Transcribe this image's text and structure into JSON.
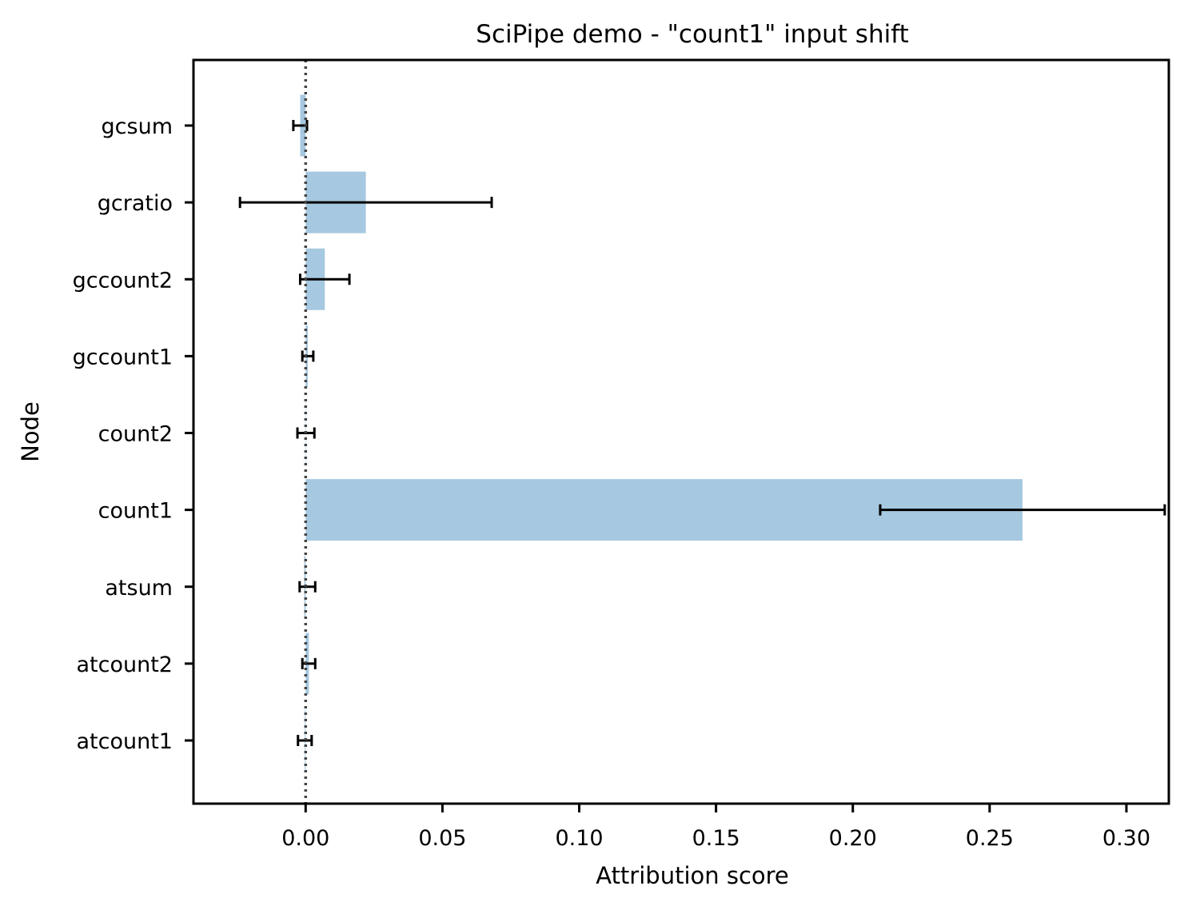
{
  "chart_data": {
    "type": "bar",
    "orientation": "horizontal",
    "title": "SciPipe demo - \"count1\" input shift",
    "xlabel": "Attribution score",
    "ylabel": "Node",
    "xlim": [
      -0.041,
      0.3155
    ],
    "xticks": [
      0.0,
      0.05,
      0.1,
      0.15,
      0.2,
      0.25,
      0.3
    ],
    "xtick_labels": [
      "0.00",
      "0.05",
      "0.10",
      "0.15",
      "0.20",
      "0.25",
      "0.30"
    ],
    "categories": [
      "gcsum",
      "gcratio",
      "gccount2",
      "gccount1",
      "count2",
      "count1",
      "atsum",
      "atcount2",
      "atcount1"
    ],
    "values": [
      -0.002,
      0.022,
      0.007,
      0.0008,
      0.0,
      0.262,
      -0.0005,
      0.0012,
      -0.0003
    ],
    "error_low": [
      -0.0045,
      -0.024,
      -0.002,
      -0.0012,
      -0.003,
      0.21,
      -0.0022,
      -0.0012,
      -0.0028
    ],
    "error_high": [
      0.0005,
      0.068,
      0.016,
      0.0028,
      0.0032,
      0.314,
      0.0035,
      0.0035,
      0.0022
    ],
    "reference_line": {
      "x": 0.0,
      "style": "dotted"
    },
    "bar_color": "#a6c8e0",
    "error_color": "#000000",
    "grid": false,
    "legend": "none"
  }
}
